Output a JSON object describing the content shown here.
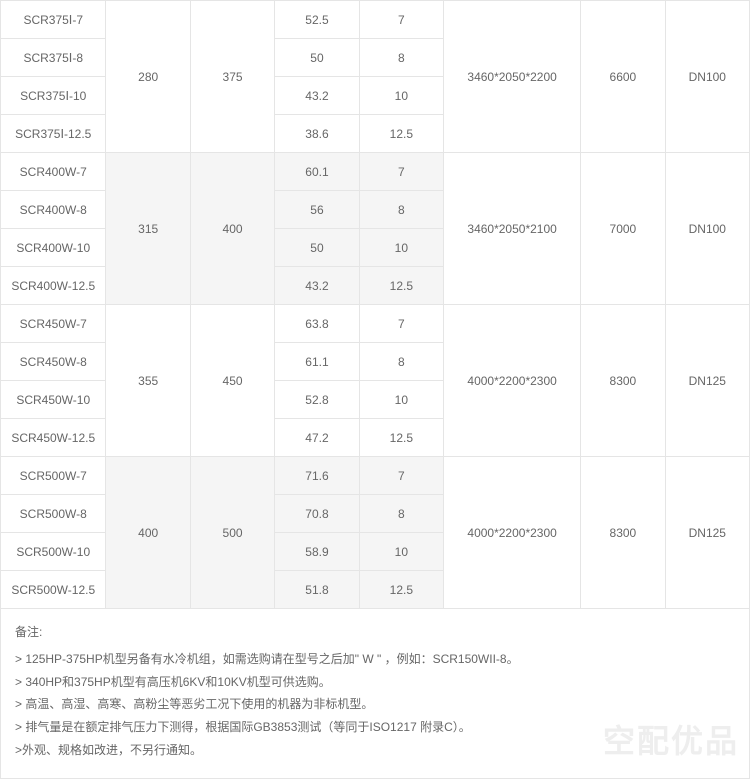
{
  "table": {
    "text_color": "#666666",
    "border_color": "#e5e5e5",
    "shade_bg": "#f5f5f5",
    "groups": [
      {
        "shaded": false,
        "col_a": "280",
        "col_b": "375",
        "col_e": "3460*2050*2200",
        "col_f": "6600",
        "col_g": "DN100",
        "rows": [
          {
            "model": "SCR375Ⅰ-7",
            "c": "52.5",
            "d": "7"
          },
          {
            "model": "SCR375Ⅰ-8",
            "c": "50",
            "d": "8"
          },
          {
            "model": "SCR375Ⅰ-10",
            "c": "43.2",
            "d": "10"
          },
          {
            "model": "SCR375Ⅰ-12.5",
            "c": "38.6",
            "d": "12.5"
          }
        ]
      },
      {
        "shaded": true,
        "col_a": "315",
        "col_b": "400",
        "col_e": "3460*2050*2100",
        "col_f": "7000",
        "col_g": "DN100",
        "rows": [
          {
            "model": "SCR400W-7",
            "c": "60.1",
            "d": "7"
          },
          {
            "model": "SCR400W-8",
            "c": "56",
            "d": "8"
          },
          {
            "model": "SCR400W-10",
            "c": "50",
            "d": "10"
          },
          {
            "model": "SCR400W-12.5",
            "c": "43.2",
            "d": "12.5"
          }
        ]
      },
      {
        "shaded": false,
        "col_a": "355",
        "col_b": "450",
        "col_e": "4000*2200*2300",
        "col_f": "8300",
        "col_g": "DN125",
        "rows": [
          {
            "model": "SCR450W-7",
            "c": "63.8",
            "d": "7"
          },
          {
            "model": "SCR450W-8",
            "c": "61.1",
            "d": "8"
          },
          {
            "model": "SCR450W-10",
            "c": "52.8",
            "d": "10"
          },
          {
            "model": "SCR450W-12.5",
            "c": "47.2",
            "d": "12.5"
          }
        ]
      },
      {
        "shaded": true,
        "col_a": "400",
        "col_b": "500",
        "col_e": "4000*2200*2300",
        "col_f": "8300",
        "col_g": "DN125",
        "rows": [
          {
            "model": "SCR500W-7",
            "c": "71.6",
            "d": "7"
          },
          {
            "model": "SCR500W-8",
            "c": "70.8",
            "d": "8"
          },
          {
            "model": "SCR500W-10",
            "c": "58.9",
            "d": "10"
          },
          {
            "model": "SCR500W-12.5",
            "c": "51.8",
            "d": "12.5"
          }
        ]
      }
    ]
  },
  "notes": {
    "header": "备注:",
    "lines": [
      "> 125HP-375HP机型另备有水冷机组，如需选购请在型号之后加\" W \" ，例如：SCR150WII-8。",
      "> 340HP和375HP机型有高压机6KV和10KV机型可供选购。",
      "> 高温、高湿、高寒、高粉尘等恶劣工况下使用的机器为非标机型。",
      "> 排气量是在额定排气压力下测得，根据国际GB3853测试（等同于ISO1217 附录C）。",
      ">外观、规格如改进，不另行通知。"
    ]
  },
  "watermark": "空配优品"
}
